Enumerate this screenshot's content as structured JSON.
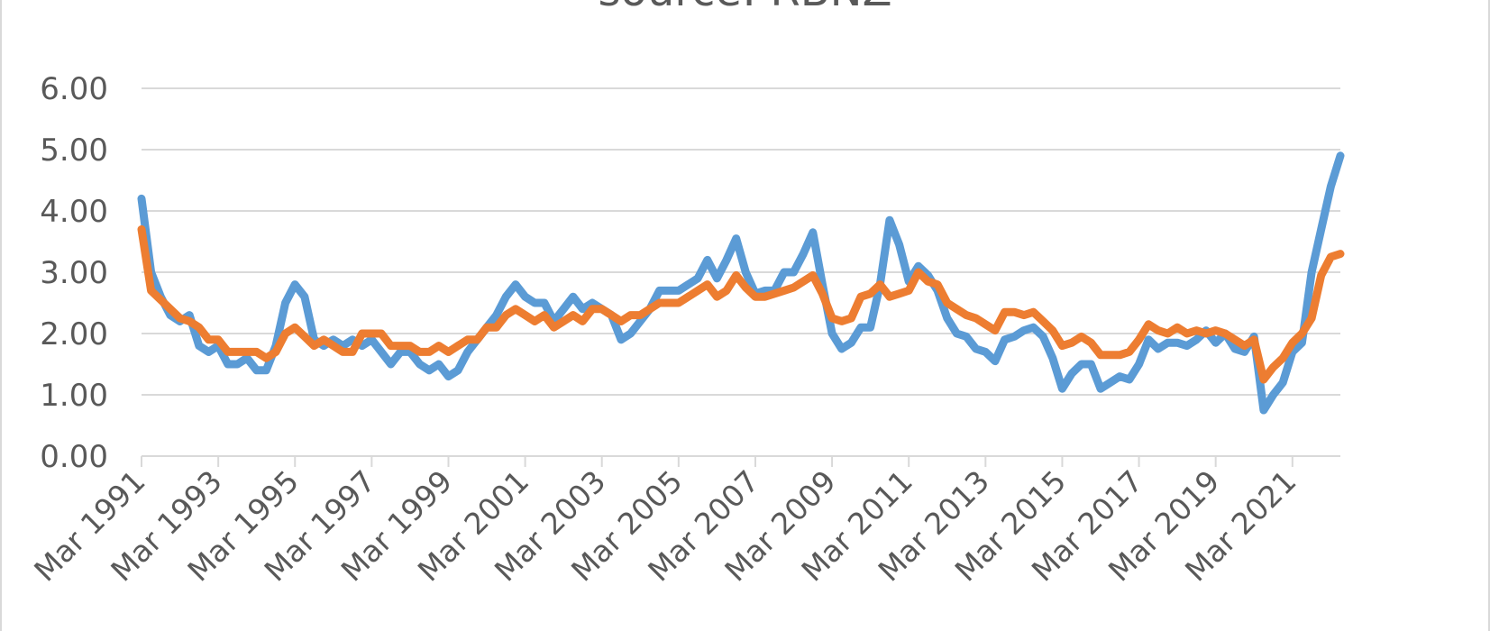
{
  "chart_data": {
    "type": "line",
    "title": "source: RBNZ",
    "xlabel": "",
    "ylabel": "",
    "ylim": [
      0,
      6
    ],
    "yticks": [
      "0.00",
      "1.00",
      "2.00",
      "3.00",
      "4.00",
      "5.00",
      "6.00"
    ],
    "xticks": [
      "Mar 1991",
      "Mar 1993",
      "Mar 1995",
      "Mar 1997",
      "Mar 1999",
      "Mar 2001",
      "Mar 2003",
      "Mar 2005",
      "Mar 2007",
      "Mar 2009",
      "Mar 2011",
      "Mar 2013",
      "Mar 2015",
      "Mar 2017",
      "Mar 2019",
      "Mar 2021"
    ],
    "grid": true,
    "legend": "none",
    "series": [
      {
        "color": "#5b9bd5",
        "points": [
          [
            "1991-03",
            4.2
          ],
          [
            "1991-06",
            3.0
          ],
          [
            "1991-09",
            2.6
          ],
          [
            "1991-12",
            2.3
          ],
          [
            "1992-03",
            2.2
          ],
          [
            "1992-06",
            2.3
          ],
          [
            "1992-09",
            1.8
          ],
          [
            "1992-12",
            1.7
          ],
          [
            "1993-03",
            1.8
          ],
          [
            "1993-06",
            1.5
          ],
          [
            "1993-09",
            1.5
          ],
          [
            "1993-12",
            1.6
          ],
          [
            "1994-03",
            1.4
          ],
          [
            "1994-06",
            1.4
          ],
          [
            "1994-09",
            1.8
          ],
          [
            "1994-12",
            2.5
          ],
          [
            "1995-03",
            2.8
          ],
          [
            "1995-06",
            2.6
          ],
          [
            "1995-09",
            1.9
          ],
          [
            "1995-12",
            1.8
          ],
          [
            "1996-03",
            1.9
          ],
          [
            "1996-06",
            1.8
          ],
          [
            "1996-09",
            1.9
          ],
          [
            "1996-12",
            1.8
          ],
          [
            "1997-03",
            1.9
          ],
          [
            "1997-06",
            1.7
          ],
          [
            "1997-09",
            1.5
          ],
          [
            "1997-12",
            1.7
          ],
          [
            "1998-03",
            1.7
          ],
          [
            "1998-06",
            1.5
          ],
          [
            "1998-09",
            1.4
          ],
          [
            "1998-12",
            1.5
          ],
          [
            "1999-03",
            1.3
          ],
          [
            "1999-06",
            1.4
          ],
          [
            "1999-09",
            1.7
          ],
          [
            "1999-12",
            1.9
          ],
          [
            "2000-03",
            2.1
          ],
          [
            "2000-06",
            2.3
          ],
          [
            "2000-09",
            2.6
          ],
          [
            "2000-12",
            2.8
          ],
          [
            "2001-03",
            2.6
          ],
          [
            "2001-06",
            2.5
          ],
          [
            "2001-09",
            2.5
          ],
          [
            "2001-12",
            2.2
          ],
          [
            "2002-03",
            2.4
          ],
          [
            "2002-06",
            2.6
          ],
          [
            "2002-09",
            2.4
          ],
          [
            "2002-12",
            2.5
          ],
          [
            "2003-03",
            2.4
          ],
          [
            "2003-06",
            2.3
          ],
          [
            "2003-09",
            1.9
          ],
          [
            "2003-12",
            2.0
          ],
          [
            "2004-03",
            2.2
          ],
          [
            "2004-06",
            2.4
          ],
          [
            "2004-09",
            2.7
          ],
          [
            "2004-12",
            2.7
          ],
          [
            "2005-03",
            2.7
          ],
          [
            "2005-06",
            2.8
          ],
          [
            "2005-09",
            2.9
          ],
          [
            "2005-12",
            3.2
          ],
          [
            "2006-03",
            2.9
          ],
          [
            "2006-06",
            3.2
          ],
          [
            "2006-09",
            3.55
          ],
          [
            "2006-12",
            3.0
          ],
          [
            "2007-03",
            2.65
          ],
          [
            "2007-06",
            2.7
          ],
          [
            "2007-09",
            2.7
          ],
          [
            "2007-12",
            3.0
          ],
          [
            "2008-03",
            3.0
          ],
          [
            "2008-06",
            3.3
          ],
          [
            "2008-09",
            3.65
          ],
          [
            "2008-12",
            2.8
          ],
          [
            "2009-03",
            2.0
          ],
          [
            "2009-06",
            1.75
          ],
          [
            "2009-09",
            1.85
          ],
          [
            "2009-12",
            2.1
          ],
          [
            "2010-03",
            2.1
          ],
          [
            "2010-06",
            2.8
          ],
          [
            "2010-09",
            3.85
          ],
          [
            "2010-12",
            3.45
          ],
          [
            "2011-03",
            2.85
          ],
          [
            "2011-06",
            3.1
          ],
          [
            "2011-09",
            2.95
          ],
          [
            "2011-12",
            2.7
          ],
          [
            "2012-03",
            2.25
          ],
          [
            "2012-06",
            2.0
          ],
          [
            "2012-09",
            1.95
          ],
          [
            "2012-12",
            1.75
          ],
          [
            "2013-03",
            1.7
          ],
          [
            "2013-06",
            1.55
          ],
          [
            "2013-09",
            1.9
          ],
          [
            "2013-12",
            1.95
          ],
          [
            "2014-03",
            2.05
          ],
          [
            "2014-06",
            2.1
          ],
          [
            "2014-09",
            1.95
          ],
          [
            "2014-12",
            1.6
          ],
          [
            "2015-03",
            1.1
          ],
          [
            "2015-06",
            1.35
          ],
          [
            "2015-09",
            1.5
          ],
          [
            "2015-12",
            1.5
          ],
          [
            "2016-03",
            1.1
          ],
          [
            "2016-06",
            1.2
          ],
          [
            "2016-09",
            1.3
          ],
          [
            "2016-12",
            1.25
          ],
          [
            "2017-03",
            1.5
          ],
          [
            "2017-06",
            1.9
          ],
          [
            "2017-09",
            1.75
          ],
          [
            "2017-12",
            1.85
          ],
          [
            "2018-03",
            1.85
          ],
          [
            "2018-06",
            1.8
          ],
          [
            "2018-09",
            1.9
          ],
          [
            "2018-12",
            2.05
          ],
          [
            "2019-03",
            1.85
          ],
          [
            "2019-06",
            2.0
          ],
          [
            "2019-09",
            1.75
          ],
          [
            "2019-12",
            1.7
          ],
          [
            "2020-03",
            1.95
          ],
          [
            "2020-06",
            0.75
          ],
          [
            "2020-09",
            1.0
          ],
          [
            "2020-12",
            1.2
          ],
          [
            "2021-03",
            1.7
          ],
          [
            "2021-06",
            1.85
          ],
          [
            "2021-09",
            3.0
          ],
          [
            "2021-12",
            3.7
          ],
          [
            "2022-03",
            4.4
          ],
          [
            "2022-06",
            4.9
          ]
        ]
      },
      {
        "color": "#ed7d31",
        "points": [
          [
            "1991-03",
            3.7
          ],
          [
            "1991-06",
            2.7
          ],
          [
            "1991-09",
            2.55
          ],
          [
            "1991-12",
            2.4
          ],
          [
            "1992-03",
            2.25
          ],
          [
            "1992-06",
            2.2
          ],
          [
            "1992-09",
            2.1
          ],
          [
            "1992-12",
            1.9
          ],
          [
            "1993-03",
            1.9
          ],
          [
            "1993-06",
            1.7
          ],
          [
            "1993-09",
            1.7
          ],
          [
            "1993-12",
            1.7
          ],
          [
            "1994-03",
            1.7
          ],
          [
            "1994-06",
            1.6
          ],
          [
            "1994-09",
            1.7
          ],
          [
            "1994-12",
            2.0
          ],
          [
            "1995-03",
            2.1
          ],
          [
            "1995-06",
            1.95
          ],
          [
            "1995-09",
            1.8
          ],
          [
            "1995-12",
            1.9
          ],
          [
            "1996-03",
            1.8
          ],
          [
            "1996-06",
            1.7
          ],
          [
            "1996-09",
            1.7
          ],
          [
            "1996-12",
            2.0
          ],
          [
            "1997-03",
            2.0
          ],
          [
            "1997-06",
            2.0
          ],
          [
            "1997-09",
            1.8
          ],
          [
            "1997-12",
            1.8
          ],
          [
            "1998-03",
            1.8
          ],
          [
            "1998-06",
            1.7
          ],
          [
            "1998-09",
            1.7
          ],
          [
            "1998-12",
            1.8
          ],
          [
            "1999-03",
            1.7
          ],
          [
            "1999-06",
            1.8
          ],
          [
            "1999-09",
            1.9
          ],
          [
            "1999-12",
            1.9
          ],
          [
            "2000-03",
            2.1
          ],
          [
            "2000-06",
            2.1
          ],
          [
            "2000-09",
            2.3
          ],
          [
            "2000-12",
            2.4
          ],
          [
            "2001-03",
            2.3
          ],
          [
            "2001-06",
            2.2
          ],
          [
            "2001-09",
            2.3
          ],
          [
            "2001-12",
            2.1
          ],
          [
            "2002-03",
            2.2
          ],
          [
            "2002-06",
            2.3
          ],
          [
            "2002-09",
            2.2
          ],
          [
            "2002-12",
            2.4
          ],
          [
            "2003-03",
            2.4
          ],
          [
            "2003-06",
            2.3
          ],
          [
            "2003-09",
            2.2
          ],
          [
            "2003-12",
            2.3
          ],
          [
            "2004-03",
            2.3
          ],
          [
            "2004-06",
            2.4
          ],
          [
            "2004-09",
            2.5
          ],
          [
            "2004-12",
            2.5
          ],
          [
            "2005-03",
            2.5
          ],
          [
            "2005-06",
            2.6
          ],
          [
            "2005-09",
            2.7
          ],
          [
            "2005-12",
            2.8
          ],
          [
            "2006-03",
            2.6
          ],
          [
            "2006-06",
            2.7
          ],
          [
            "2006-09",
            2.95
          ],
          [
            "2006-12",
            2.75
          ],
          [
            "2007-03",
            2.6
          ],
          [
            "2007-06",
            2.6
          ],
          [
            "2007-09",
            2.65
          ],
          [
            "2007-12",
            2.7
          ],
          [
            "2008-03",
            2.75
          ],
          [
            "2008-06",
            2.85
          ],
          [
            "2008-09",
            2.95
          ],
          [
            "2008-12",
            2.65
          ],
          [
            "2009-03",
            2.25
          ],
          [
            "2009-06",
            2.2
          ],
          [
            "2009-09",
            2.25
          ],
          [
            "2009-12",
            2.6
          ],
          [
            "2010-03",
            2.65
          ],
          [
            "2010-06",
            2.8
          ],
          [
            "2010-09",
            2.6
          ],
          [
            "2010-12",
            2.65
          ],
          [
            "2011-03",
            2.7
          ],
          [
            "2011-06",
            3.0
          ],
          [
            "2011-09",
            2.85
          ],
          [
            "2011-12",
            2.8
          ],
          [
            "2012-03",
            2.5
          ],
          [
            "2012-06",
            2.4
          ],
          [
            "2012-09",
            2.3
          ],
          [
            "2012-12",
            2.25
          ],
          [
            "2013-03",
            2.15
          ],
          [
            "2013-06",
            2.05
          ],
          [
            "2013-09",
            2.35
          ],
          [
            "2013-12",
            2.35
          ],
          [
            "2014-03",
            2.3
          ],
          [
            "2014-06",
            2.35
          ],
          [
            "2014-09",
            2.2
          ],
          [
            "2014-12",
            2.05
          ],
          [
            "2015-03",
            1.8
          ],
          [
            "2015-06",
            1.85
          ],
          [
            "2015-09",
            1.95
          ],
          [
            "2015-12",
            1.85
          ],
          [
            "2016-03",
            1.65
          ],
          [
            "2016-06",
            1.65
          ],
          [
            "2016-09",
            1.65
          ],
          [
            "2016-12",
            1.7
          ],
          [
            "2017-03",
            1.9
          ],
          [
            "2017-06",
            2.15
          ],
          [
            "2017-09",
            2.05
          ],
          [
            "2017-12",
            2.0
          ],
          [
            "2018-03",
            2.1
          ],
          [
            "2018-06",
            2.0
          ],
          [
            "2018-09",
            2.05
          ],
          [
            "2018-12",
            2.0
          ],
          [
            "2019-03",
            2.05
          ],
          [
            "2019-06",
            2.0
          ],
          [
            "2019-09",
            1.9
          ],
          [
            "2019-12",
            1.8
          ],
          [
            "2020-03",
            1.9
          ],
          [
            "2020-06",
            1.25
          ],
          [
            "2020-09",
            1.45
          ],
          [
            "2020-12",
            1.6
          ],
          [
            "2021-03",
            1.85
          ],
          [
            "2021-06",
            2.0
          ],
          [
            "2021-09",
            2.25
          ],
          [
            "2021-12",
            2.95
          ],
          [
            "2022-03",
            3.25
          ],
          [
            "2022-06",
            3.3
          ]
        ]
      }
    ]
  }
}
